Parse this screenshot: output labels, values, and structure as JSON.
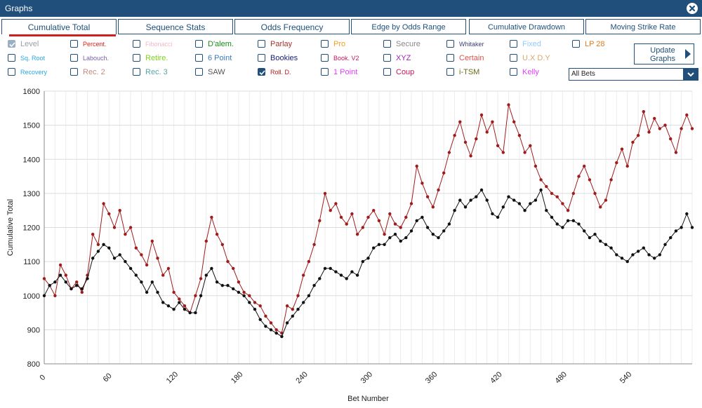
{
  "window": {
    "title": "Graphs",
    "close_icon": "close-icon"
  },
  "tabs": [
    {
      "label": "Cumulative Total",
      "active": true
    },
    {
      "label": "Sequence Stats"
    },
    {
      "label": "Odds Frequency"
    },
    {
      "label": "Edge by Odds Range"
    },
    {
      "label": "Cumulative Drawdown"
    },
    {
      "label": "Moving Strike Rate"
    }
  ],
  "options": [
    {
      "label": "Level",
      "color": "#9aa0a6",
      "checked": true,
      "disabled": true
    },
    {
      "label": "Sq. Root",
      "color": "#29a8e0",
      "checked": false
    },
    {
      "label": "Recovery",
      "color": "#29a8e0",
      "checked": false
    },
    {
      "label": "Percent.",
      "color": "#e0201b",
      "checked": false
    },
    {
      "label": "Labouch.",
      "color": "#7b5ea7",
      "checked": false
    },
    {
      "label": "Rec. 2",
      "color": "#c38b7e",
      "checked": false
    },
    {
      "label": "Fibonacci",
      "color": "#f5b8c7",
      "checked": false
    },
    {
      "label": "Retire.",
      "color": "#7ed321",
      "checked": false
    },
    {
      "label": "Rec. 3",
      "color": "#5aa3a3",
      "checked": false
    },
    {
      "label": "D'alem.",
      "color": "#1a8a1a",
      "checked": false
    },
    {
      "label": "6 Point",
      "color": "#3a7abf",
      "checked": false
    },
    {
      "label": "SAW",
      "color": "#555555",
      "checked": false
    },
    {
      "label": "Parlay",
      "color": "#a8322d",
      "checked": false
    },
    {
      "label": "Bookies",
      "color": "#1a237e",
      "checked": false
    },
    {
      "label": "Roll. D.",
      "color": "#b71c1c",
      "checked": true
    },
    {
      "label": "Pro",
      "color": "#f0a020",
      "checked": false
    },
    {
      "label": "Book. V2",
      "color": "#c2185b",
      "checked": false
    },
    {
      "label": "1 Point",
      "color": "#e040fb",
      "checked": false
    },
    {
      "label": "Secure",
      "color": "#888888",
      "checked": false
    },
    {
      "label": "XYZ",
      "color": "#9c27b0",
      "checked": false
    },
    {
      "label": "Coup",
      "color": "#c2185b",
      "checked": false
    },
    {
      "label": "Whitaker",
      "color": "#3f3f7a",
      "checked": false
    },
    {
      "label": "Certain",
      "color": "#d9534f",
      "checked": false
    },
    {
      "label": "i-TSM",
      "color": "#6b6b1a",
      "checked": false
    },
    {
      "label": "Fixed",
      "color": "#90caf9",
      "checked": false
    },
    {
      "label": "U.X D.Y",
      "color": "#d7a86e",
      "checked": false
    },
    {
      "label": "Kelly",
      "color": "#e040fb",
      "checked": false
    },
    {
      "label": "LP 28",
      "color": "#e07b20",
      "checked": false
    }
  ],
  "update_button": {
    "line1": "Update",
    "line2": "Graphs"
  },
  "filter_select": {
    "value": "All Bets"
  },
  "chart_data": {
    "type": "line",
    "xlabel": "Bet Number",
    "ylabel": "Cumulative Total",
    "xlim": [
      0,
      600
    ],
    "ylim": [
      800,
      1600
    ],
    "x_ticks": [
      0,
      60,
      120,
      180,
      240,
      300,
      360,
      420,
      480,
      540
    ],
    "y_ticks": [
      800,
      900,
      1000,
      1100,
      1200,
      1300,
      1400,
      1500,
      1600
    ],
    "grid": true,
    "series": [
      {
        "color": "#a01b1b",
        "x": [
          0,
          5,
          10,
          15,
          20,
          25,
          30,
          35,
          40,
          45,
          50,
          55,
          60,
          65,
          70,
          75,
          80,
          85,
          90,
          95,
          100,
          105,
          110,
          115,
          120,
          125,
          130,
          135,
          140,
          145,
          150,
          155,
          160,
          165,
          170,
          175,
          180,
          185,
          190,
          195,
          200,
          205,
          210,
          215,
          220,
          225,
          230,
          235,
          240,
          245,
          250,
          255,
          260,
          265,
          270,
          275,
          280,
          285,
          290,
          295,
          300,
          305,
          310,
          315,
          320,
          325,
          330,
          335,
          340,
          345,
          350,
          355,
          360,
          365,
          370,
          375,
          380,
          385,
          390,
          395,
          400,
          405,
          410,
          415,
          420,
          425,
          430,
          435,
          440,
          445,
          450,
          455,
          460,
          465,
          470,
          475,
          480,
          485,
          490,
          495,
          500,
          505,
          510,
          515,
          520,
          525,
          530,
          535,
          540,
          545,
          550,
          555,
          560,
          565,
          570,
          575,
          580,
          585,
          590,
          595,
          600
        ],
        "y": [
          1050,
          1030,
          1000,
          1090,
          1060,
          1020,
          1040,
          1010,
          1060,
          1180,
          1150,
          1270,
          1240,
          1200,
          1250,
          1180,
          1200,
          1140,
          1120,
          1090,
          1160,
          1110,
          1060,
          1080,
          1010,
          990,
          970,
          950,
          1000,
          1050,
          1160,
          1230,
          1180,
          1150,
          1100,
          1080,
          1040,
          1010,
          1000,
          980,
          970,
          940,
          920,
          900,
          890,
          970,
          960,
          1000,
          1060,
          1100,
          1150,
          1220,
          1300,
          1250,
          1270,
          1230,
          1210,
          1240,
          1180,
          1200,
          1230,
          1250,
          1220,
          1180,
          1240,
          1210,
          1200,
          1230,
          1270,
          1380,
          1330,
          1290,
          1260,
          1310,
          1360,
          1420,
          1470,
          1510,
          1450,
          1410,
          1460,
          1530,
          1480,
          1510,
          1440,
          1420,
          1560,
          1510,
          1470,
          1420,
          1440,
          1380,
          1340,
          1320,
          1300,
          1290,
          1270,
          1250,
          1300,
          1350,
          1380,
          1340,
          1300,
          1260,
          1280,
          1340,
          1390,
          1430,
          1380,
          1450,
          1470,
          1540,
          1480,
          1520,
          1490,
          1500,
          1460,
          1420,
          1490,
          1530,
          1490
        ],
        "x_end": 600
      },
      {
        "color": "#111111",
        "x": [
          0,
          5,
          10,
          15,
          20,
          25,
          30,
          35,
          40,
          45,
          50,
          55,
          60,
          65,
          70,
          75,
          80,
          85,
          90,
          95,
          100,
          105,
          110,
          115,
          120,
          125,
          130,
          135,
          140,
          145,
          150,
          155,
          160,
          165,
          170,
          175,
          180,
          185,
          190,
          195,
          200,
          205,
          210,
          215,
          220,
          225,
          230,
          235,
          240,
          245,
          250,
          255,
          260,
          265,
          270,
          275,
          280,
          285,
          290,
          295,
          300,
          305,
          310,
          315,
          320,
          325,
          330,
          335,
          340,
          345,
          350,
          355,
          360,
          365,
          370,
          375,
          380,
          385,
          390,
          395,
          400,
          405,
          410,
          415,
          420,
          425,
          430,
          435,
          440,
          445,
          450,
          455,
          460,
          465,
          470,
          475,
          480,
          485,
          490,
          495,
          500,
          505,
          510,
          515,
          520,
          525,
          530,
          535,
          540,
          545,
          550,
          555,
          560,
          565,
          570,
          575,
          580,
          585,
          590,
          595,
          600
        ],
        "y": [
          1000,
          1030,
          1040,
          1060,
          1040,
          1020,
          1030,
          1020,
          1050,
          1110,
          1130,
          1150,
          1140,
          1110,
          1120,
          1100,
          1080,
          1060,
          1040,
          1010,
          1040,
          1010,
          980,
          970,
          960,
          980,
          960,
          950,
          950,
          1000,
          1060,
          1080,
          1040,
          1030,
          1030,
          1020,
          1010,
          1000,
          980,
          960,
          930,
          910,
          900,
          890,
          880,
          920,
          940,
          960,
          980,
          1000,
          1030,
          1050,
          1080,
          1080,
          1070,
          1060,
          1050,
          1070,
          1060,
          1100,
          1110,
          1140,
          1150,
          1150,
          1170,
          1180,
          1160,
          1170,
          1190,
          1220,
          1230,
          1200,
          1180,
          1170,
          1190,
          1210,
          1250,
          1280,
          1260,
          1280,
          1290,
          1310,
          1280,
          1240,
          1230,
          1260,
          1290,
          1280,
          1270,
          1250,
          1270,
          1280,
          1310,
          1250,
          1230,
          1210,
          1200,
          1220,
          1220,
          1210,
          1190,
          1170,
          1180,
          1160,
          1150,
          1140,
          1120,
          1110,
          1100,
          1120,
          1130,
          1140,
          1120,
          1110,
          1120,
          1150,
          1170,
          1190,
          1200,
          1240,
          1200
        ],
        "x_end": 600
      }
    ]
  }
}
